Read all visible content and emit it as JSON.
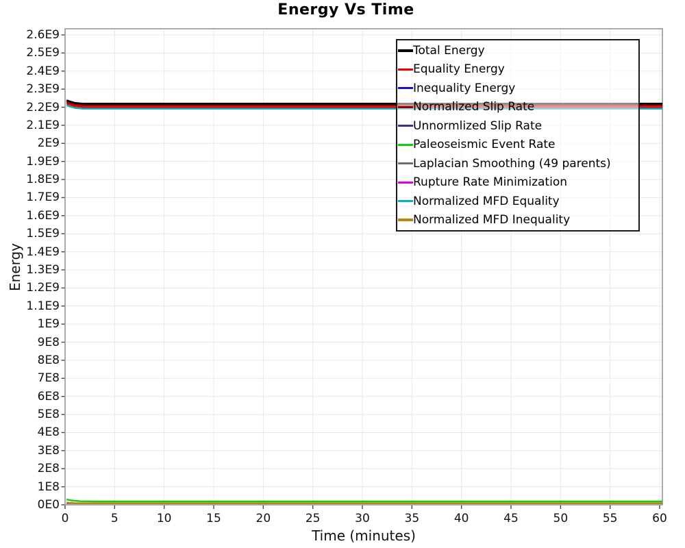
{
  "chart_data": {
    "type": "line",
    "title": "Energy Vs Time",
    "xlabel": "Time (minutes)",
    "ylabel": "Energy",
    "xlim": [
      0,
      60.3
    ],
    "ylim": [
      0,
      2634000000.0
    ],
    "grid": true,
    "legend_position": "top-right",
    "x_ticks": [
      0,
      5,
      10,
      15,
      20,
      25,
      30,
      35,
      40,
      45,
      50,
      55,
      60
    ],
    "y_tick_step": 100000000.0,
    "y_tick_labels": [
      "0E0",
      "1E8",
      "2E8",
      "3E8",
      "4E8",
      "5E8",
      "6E8",
      "7E8",
      "8E8",
      "9E8",
      "1E9",
      "1.1E9",
      "1.2E9",
      "1.3E9",
      "1.4E9",
      "1.5E9",
      "1.6E9",
      "1.7E9",
      "1.8E9",
      "1.9E9",
      "2E9",
      "2.1E9",
      "2.2E9",
      "2.3E9",
      "2.4E9",
      "2.5E9",
      "2.6E9"
    ],
    "series": [
      {
        "name": "Total Energy",
        "color": "#000000",
        "width": 3,
        "points": [
          [
            0.15,
            2238000000.0
          ],
          [
            0.5,
            2231000000.0
          ],
          [
            1.0,
            2223000000.0
          ],
          [
            1.8,
            2219000000.0
          ],
          [
            60.28,
            2219000000.0
          ]
        ]
      },
      {
        "name": "Equality Energy",
        "color": "#ee0000",
        "width": 2.4,
        "points": [
          [
            0.15,
            2220000000.0
          ],
          [
            0.5,
            2213000000.0
          ],
          [
            1.0,
            2205000000.0
          ],
          [
            1.8,
            2201000000.0
          ],
          [
            60.28,
            2201000000.0
          ]
        ]
      },
      {
        "name": "Inequality Energy",
        "color": "#1414cc",
        "width": 2,
        "points": [
          [
            0.15,
            9000000.0
          ],
          [
            60.28,
            9000000.0
          ]
        ]
      },
      {
        "name": "Normalized Slip Rate",
        "color": "#990000",
        "width": 2.4,
        "points": [
          [
            0.15,
            2229000000.0
          ],
          [
            0.5,
            2222000000.0
          ],
          [
            1.0,
            2214000000.0
          ],
          [
            1.8,
            2210000000.0
          ],
          [
            60.28,
            2210000000.0
          ]
        ]
      },
      {
        "name": "Unnormlized Slip Rate",
        "color": "#333399",
        "width": 2,
        "points": [
          [
            0.15,
            9000000.0
          ],
          [
            60.28,
            9000000.0
          ]
        ]
      },
      {
        "name": "Paleoseismic Event Rate",
        "color": "#11cc11",
        "width": 2.4,
        "points": [
          [
            0.15,
            30000000.0
          ],
          [
            0.7,
            24000000.0
          ],
          [
            1.5,
            20000000.0
          ],
          [
            3,
            19000000.0
          ],
          [
            60.28,
            19000000.0
          ]
        ]
      },
      {
        "name": "Laplacian Smoothing (49 parents)",
        "color": "#707070",
        "width": 2,
        "points": [
          [
            0.15,
            9000000.0
          ],
          [
            60.28,
            9000000.0
          ]
        ]
      },
      {
        "name": "Rupture Rate Minimization",
        "color": "#dd00dd",
        "width": 2,
        "points": [
          [
            0.15,
            9000000.0
          ],
          [
            60.28,
            9000000.0
          ]
        ]
      },
      {
        "name": "Normalized MFD Equality",
        "color": "#00b2bb",
        "width": 2.4,
        "points": [
          [
            0.15,
            2211000000.0
          ],
          [
            0.5,
            2204000000.0
          ],
          [
            1.0,
            2196000000.0
          ],
          [
            1.8,
            2192000000.0
          ],
          [
            60.28,
            2192000000.0
          ]
        ]
      },
      {
        "name": "Normalized MFD Inequality",
        "color": "#b8860b",
        "width": 2.6,
        "points": [
          [
            0.15,
            12000000.0
          ],
          [
            1.0,
            9000000.0
          ],
          [
            60.28,
            9000000.0
          ]
        ]
      }
    ]
  },
  "colors": {
    "grid": "#e8e8e8",
    "plot_border": "#8f8f8f",
    "tick_mark": "#444444",
    "background": "#ffffff"
  }
}
